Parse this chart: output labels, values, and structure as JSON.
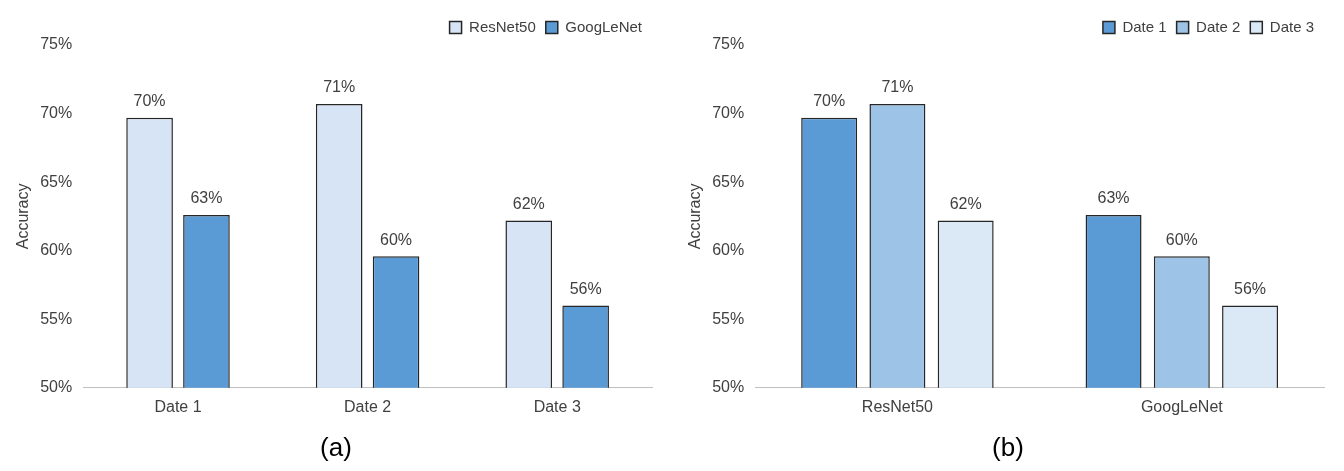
{
  "chart_data": [
    {
      "type": "bar",
      "categories": [
        "Date 1",
        "Date 2",
        "Date 3"
      ],
      "ylabel": "Accuracy",
      "ylim": [
        50,
        75
      ],
      "yticks": [
        {
          "value": 50,
          "label": "50%"
        },
        {
          "value": 55,
          "label": "55%"
        },
        {
          "value": 60,
          "label": "60%"
        },
        {
          "value": 65,
          "label": "65%"
        },
        {
          "value": 70,
          "label": "70%"
        },
        {
          "value": 75,
          "label": "75%"
        }
      ],
      "legend": "top right",
      "annotations": [
        "(a)"
      ],
      "series": [
        {
          "name": "ResNet50",
          "color": "#d6e4f5",
          "values": [
            69.7,
            70.7,
            62.2
          ],
          "value_labels": [
            "70%",
            "71%",
            "62%"
          ]
        },
        {
          "name": "GoogLeNet",
          "color": "#5b9bd5",
          "values": [
            62.6,
            59.6,
            56.0
          ],
          "value_labels": [
            "63%",
            "60%",
            "56%"
          ]
        }
      ]
    },
    {
      "type": "bar",
      "categories": [
        "ResNet50",
        "GoogLeNet"
      ],
      "ylabel": "Accuracy",
      "ylim": [
        50,
        75
      ],
      "yticks": [
        {
          "value": 50,
          "label": "50%"
        },
        {
          "value": 55,
          "label": "55%"
        },
        {
          "value": 60,
          "label": "60%"
        },
        {
          "value": 65,
          "label": "65%"
        },
        {
          "value": 70,
          "label": "70%"
        },
        {
          "value": 75,
          "label": "75%"
        }
      ],
      "legend": "top right",
      "annotations": [
        "(b)"
      ],
      "series": [
        {
          "name": "Date 1",
          "color": "#5b9bd5",
          "values": [
            69.7,
            62.6
          ],
          "value_labels": [
            "70%",
            "63%"
          ]
        },
        {
          "name": "Date 2",
          "color": "#9dc3e6",
          "values": [
            70.7,
            59.6
          ],
          "value_labels": [
            "71%",
            "60%"
          ]
        },
        {
          "name": "Date 3",
          "color": "#dbe8f6",
          "values": [
            62.2,
            56.0
          ],
          "value_labels": [
            "62%",
            "56%"
          ]
        }
      ]
    }
  ]
}
